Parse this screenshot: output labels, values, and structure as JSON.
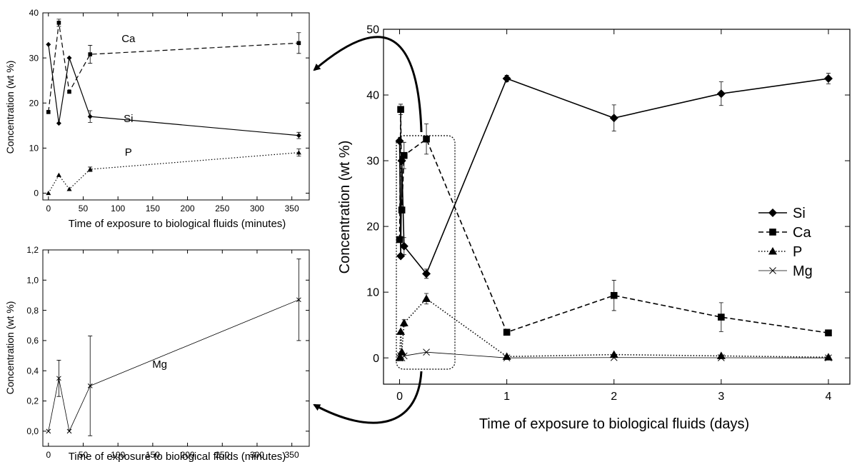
{
  "chart_data": [
    {
      "type": "line",
      "id": "main",
      "xlabel": "Time of exposure to biological fluids (days)",
      "ylabel": "Concentration (wt %)",
      "xlim": [
        -0.15,
        4.2
      ],
      "ylim": [
        -4,
        50
      ],
      "xticks": [
        "0",
        "1",
        "2",
        "3",
        "4"
      ],
      "yticks": [
        "0",
        "10",
        "20",
        "30",
        "40",
        "50"
      ],
      "legend": "right",
      "series": [
        {
          "name": "Si",
          "marker": "diamond",
          "dash": "solid",
          "x": [
            0,
            0.0104,
            0.0208,
            0.0417,
            0.25,
            1,
            2,
            3,
            4
          ],
          "y": [
            33.0,
            15.5,
            30.0,
            17.0,
            12.8,
            42.5,
            36.5,
            40.2,
            42.5
          ],
          "err": [
            0,
            0,
            0,
            1.3,
            0.7,
            0.5,
            2.0,
            1.8,
            0.8
          ]
        },
        {
          "name": "Ca",
          "marker": "square",
          "dash": "dashed",
          "x": [
            0,
            0.0104,
            0.0208,
            0.0417,
            0.25,
            1,
            2,
            3,
            4
          ],
          "y": [
            18.0,
            37.8,
            22.5,
            30.8,
            33.3,
            3.9,
            9.5,
            6.2,
            3.8
          ],
          "err": [
            0,
            0.8,
            0,
            2.0,
            2.3,
            0,
            2.3,
            2.2,
            0.4
          ]
        },
        {
          "name": "P",
          "marker": "triangle",
          "dash": "dotted",
          "x": [
            0,
            0.0104,
            0.0208,
            0.0417,
            0.25,
            1,
            2,
            3,
            4
          ],
          "y": [
            0.0,
            4.0,
            0.9,
            5.3,
            9.0,
            0.2,
            0.5,
            0.3,
            0.1
          ],
          "err": [
            0,
            0,
            0,
            0.5,
            0.8,
            0,
            0,
            0,
            0
          ]
        },
        {
          "name": "Mg",
          "marker": "x",
          "dash": "thin",
          "x": [
            0,
            0.0104,
            0.0208,
            0.0417,
            0.25,
            1,
            2,
            3,
            4
          ],
          "y": [
            0.0,
            0.35,
            0.0,
            0.3,
            0.87,
            0.0,
            0.05,
            0.02,
            0.0
          ],
          "err": [
            0,
            0,
            0,
            0,
            0,
            0,
            0,
            0,
            0
          ]
        }
      ]
    },
    {
      "type": "line",
      "id": "inset-top",
      "xlabel": "Time of exposure to biological fluids (minutes)",
      "ylabel": "Concentration (wt %)",
      "xlim": [
        -8,
        375
      ],
      "ylim": [
        -1.5,
        40
      ],
      "xticks": [
        "0",
        "50",
        "100",
        "150",
        "200",
        "250",
        "300",
        "350"
      ],
      "yticks": [
        "0",
        "10",
        "20",
        "30",
        "40"
      ],
      "annotations": [
        {
          "text": "Ca",
          "x": 115,
          "y": 33.5
        },
        {
          "text": "Si",
          "x": 115,
          "y": 15.8
        },
        {
          "text": "P",
          "x": 115,
          "y": 8.3
        }
      ],
      "series": [
        {
          "name": "Si",
          "marker": "diamond",
          "dash": "solid",
          "x": [
            0,
            15,
            30,
            60,
            360
          ],
          "y": [
            33.0,
            15.5,
            30.0,
            17.0,
            12.8
          ],
          "err": [
            0,
            0,
            0,
            1.3,
            0.7
          ]
        },
        {
          "name": "Ca",
          "marker": "square",
          "dash": "dashed",
          "x": [
            0,
            15,
            30,
            60,
            360
          ],
          "y": [
            18.0,
            37.8,
            22.5,
            30.8,
            33.3
          ],
          "err": [
            0,
            0.8,
            0,
            2.0,
            2.3
          ]
        },
        {
          "name": "P",
          "marker": "triangle",
          "dash": "dotted",
          "x": [
            0,
            15,
            30,
            60,
            360
          ],
          "y": [
            0.0,
            4.0,
            0.9,
            5.3,
            9.0
          ],
          "err": [
            0,
            0,
            0,
            0.5,
            0.8
          ]
        }
      ]
    },
    {
      "type": "line",
      "id": "inset-bottom",
      "xlabel": "Time of exposure to biological fluids (minutes)",
      "ylabel": "Concentration (wt %)",
      "xlim": [
        -8,
        375
      ],
      "ylim": [
        -0.1,
        1.2
      ],
      "xticks": [
        "0",
        "50",
        "100",
        "150",
        "200",
        "250",
        "300",
        "350"
      ],
      "yticks": [
        "0,0",
        "0,2",
        "0,4",
        "0,6",
        "0,8",
        "1,0",
        "1,2"
      ],
      "annotations": [
        {
          "text": "Mg",
          "x": 160,
          "y": 0.42
        }
      ],
      "series": [
        {
          "name": "Mg",
          "marker": "x",
          "dash": "thin",
          "x": [
            0,
            15,
            30,
            60,
            360
          ],
          "y": [
            0.0,
            0.35,
            0.0,
            0.3,
            0.87
          ],
          "err": [
            0,
            0.12,
            0,
            0.33,
            0.27
          ]
        }
      ]
    }
  ]
}
